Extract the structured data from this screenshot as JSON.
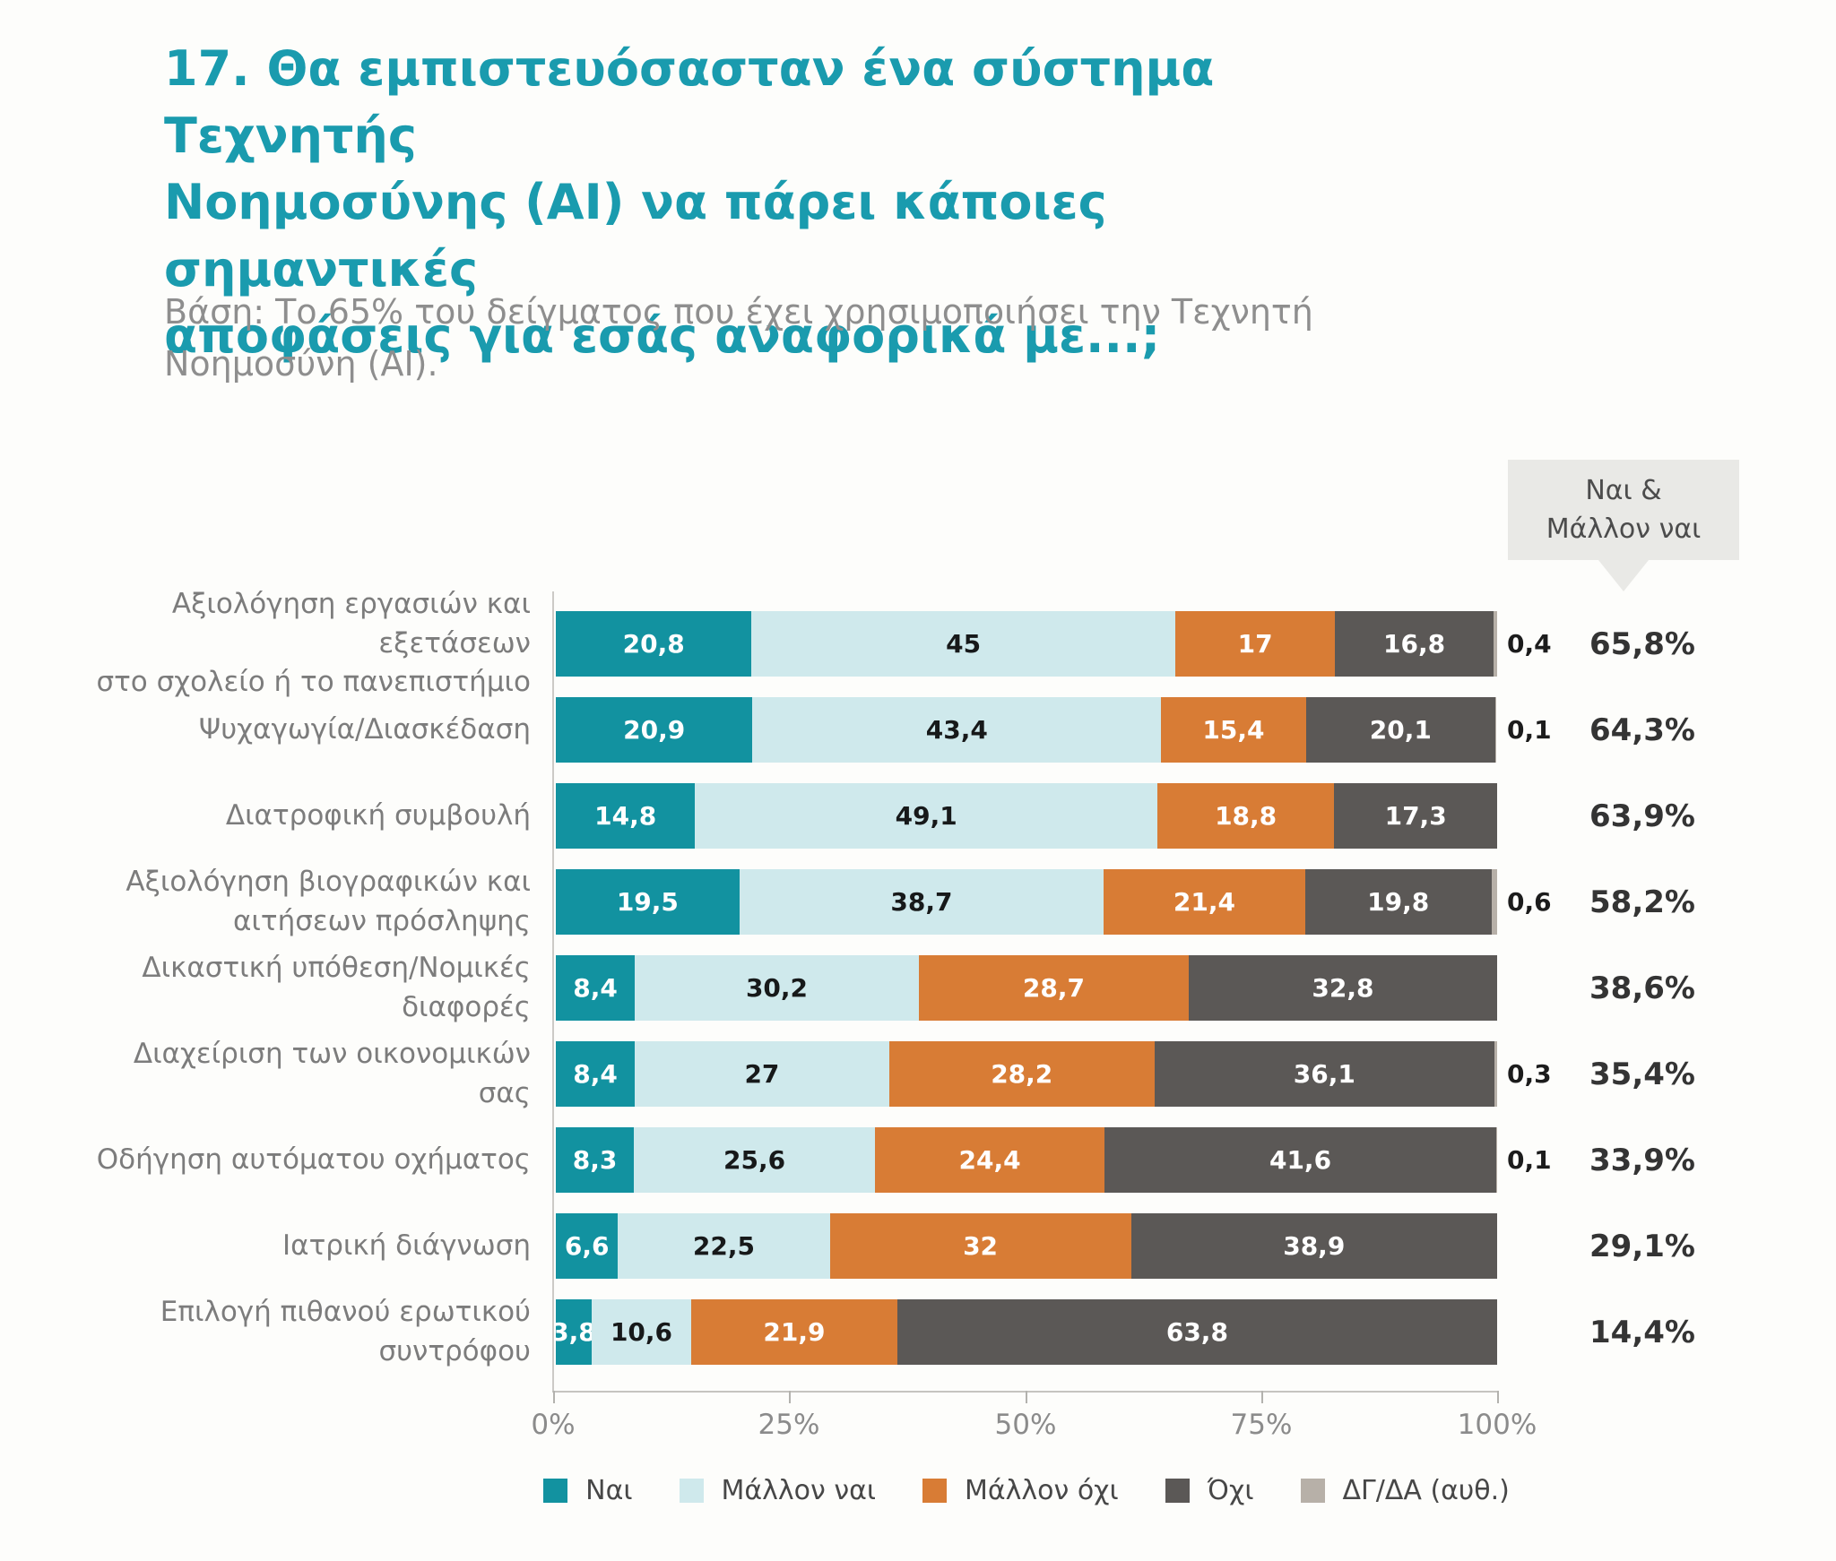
{
  "title": "17. Θα εμπιστευόσασταν ένα σύστημα Τεχνητής\nΝοημοσύνης (ΑΙ) να πάρει κάποιες σημαντικές\nαποφάσεις για εσάς αναφορικά με...;",
  "subtitle": "Βάση: Το 65% του δείγματος που έχει χρησιμοποιήσει την Τεχνητή\nΝοημοσύνη (ΑΙ).",
  "callout": {
    "label": "Ναι &\nΜάλλον ναι"
  },
  "colors": {
    "title": "#1a9bae",
    "subtitle": "#8e8e8e",
    "callout_bg": "#e9e9e6",
    "axis": "#c5c4c0",
    "category_label": "#7c7c7c",
    "total_label": "#343434"
  },
  "chart_data": {
    "type": "bar",
    "stacked": true,
    "orientation": "horizontal",
    "xlim": [
      0,
      100
    ],
    "x_ticks": [
      "0%",
      "25%",
      "50%",
      "75%",
      "100%"
    ],
    "legend_position": "bottom",
    "summary_column_header": "Ναι & Μάλλον ναι",
    "categories": [
      "Αξιολόγηση εργασιών και εξετάσεων\nστο σχολείο ή το πανεπιστήμιο",
      "Ψυχαγωγία/Διασκέδαση",
      "Διατροφική συμβουλή",
      "Αξιολόγηση βιογραφικών και\nαιτήσεων πρόσληψης",
      "Δικαστική υπόθεση/Νομικές\nδιαφορές",
      "Διαχείριση των οικονομικών σας",
      "Οδήγηση αυτόματου οχήματος",
      "Ιατρική διάγνωση",
      "Επιλογή πιθανού ερωτικού\nσυντρόφου"
    ],
    "series": [
      {
        "key": "nai",
        "name": "Ναι",
        "color": "#1292a0",
        "label_color": "#ffffff",
        "values": [
          20.8,
          20.9,
          14.8,
          19.5,
          8.4,
          8.4,
          8.3,
          6.6,
          3.8
        ]
      },
      {
        "key": "mallon-nai",
        "name": "Μάλλον ναι",
        "color": "#cfe9ec",
        "label_color": "#17191a",
        "values": [
          45,
          43.4,
          49.1,
          38.7,
          30.2,
          27,
          25.6,
          22.5,
          10.6
        ]
      },
      {
        "key": "mallon-oxi",
        "name": "Μάλλον όχι",
        "color": "#d87c35",
        "label_color": "#ffffff",
        "values": [
          17,
          15.4,
          18.8,
          21.4,
          28.7,
          28.2,
          24.4,
          32,
          21.9
        ]
      },
      {
        "key": "oxi",
        "name": "Όχι",
        "color": "#5b5856",
        "label_color": "#ffffff",
        "values": [
          16.8,
          20.1,
          17.3,
          19.8,
          32.8,
          36.1,
          41.6,
          38.9,
          63.8
        ]
      },
      {
        "key": "dgda",
        "name": "ΔΓ/ΔΑ (αυθ.)",
        "color": "#b7b0a8",
        "label_color": null,
        "values": [
          0.4,
          0.1,
          null,
          0.6,
          null,
          0.3,
          0.1,
          null,
          null
        ]
      }
    ],
    "totals": [
      "65,8%",
      "64,3%",
      "63,9%",
      "58,2%",
      "38,6%",
      "35,4%",
      "33,9%",
      "29,1%",
      "14,4%"
    ]
  }
}
